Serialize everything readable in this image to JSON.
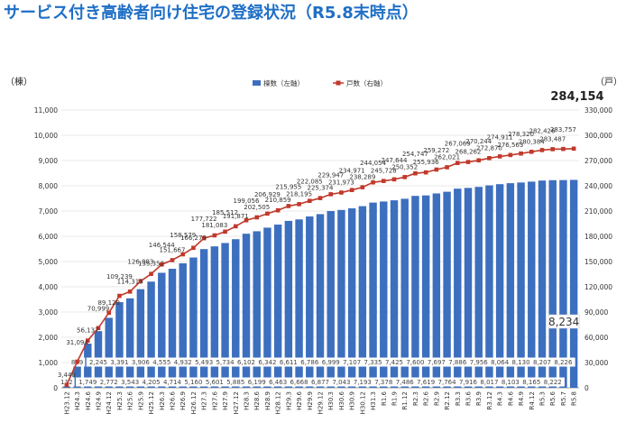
{
  "title": "サービス付き高齢者向け住宅の登録状況（R5.8末時点）",
  "chart_data": {
    "type": "bar+line",
    "left_axis_unit": "（棟）",
    "right_axis_unit": "（戸）",
    "left_ticks": [
      "11,000",
      "10,000",
      "9,000",
      "8,000",
      "7,000",
      "6,000",
      "5,000",
      "4,000",
      "3,000",
      "2,000",
      "1,000",
      "0"
    ],
    "right_ticks": [
      "330,000",
      "300,000",
      "270,000",
      "240,000",
      "210,000",
      "180,000",
      "150,000",
      "120,000",
      "90,000",
      "60,000",
      "30,000",
      "0"
    ],
    "ylim_left": [
      0,
      11000
    ],
    "ylim_right": [
      0,
      330000
    ],
    "legend": {
      "bar": "棟数（左軸）",
      "line": "戸数（右軸）",
      "placement": "top-center"
    },
    "bar_color": "#3d6fbf",
    "line_color": "#c0392b",
    "categories": [
      "H23.12",
      "H24.3",
      "H24.6",
      "H24.9",
      "H24.12",
      "H25.3",
      "H25.6",
      "H25.9",
      "H25.12",
      "H26.3",
      "H26.6",
      "H26.9",
      "H26.12",
      "H27.3",
      "H27.6",
      "H27.9",
      "H27.12",
      "H28.3",
      "H28.6",
      "H28.9",
      "H28.12",
      "H29.3",
      "H29.6",
      "H29.9",
      "H29.12",
      "H30.3",
      "H30.6",
      "H30.9",
      "H30.12",
      "H31.3",
      "R1.6",
      "R1.9",
      "R1.12",
      "R2.3",
      "R2.6",
      "R2.9",
      "R2.12",
      "R3.3",
      "R3.6",
      "R3.9",
      "R3.12",
      "R4.3",
      "R4.6",
      "R4.9",
      "R4.12",
      "R5.3",
      "R5.6",
      "R5.7",
      "R5.8"
    ],
    "series": [
      {
        "name": "棟数（左軸）",
        "values": [
          112,
          889,
          1749,
          2245,
          2772,
          3391,
          3543,
          3906,
          4205,
          4555,
          4714,
          4932,
          5160,
          5493,
          5601,
          5734,
          5885,
          6102,
          6199,
          6342,
          6463,
          6611,
          6668,
          6786,
          6877,
          6999,
          7043,
          7107,
          7193,
          7335,
          7378,
          7425,
          7486,
          7600,
          7619,
          7697,
          7764,
          7886,
          7916,
          7956,
          8017,
          8064,
          8103,
          8130,
          8165,
          8207,
          8222,
          8226,
          8234
        ],
        "labels": [
          "112",
          "889",
          "1,749",
          "2,245",
          "2,772",
          "3,391",
          "3,543",
          "3,906",
          "4,205",
          "4,555",
          "4,714",
          "4,932",
          "5,160",
          "5,493",
          "5,601",
          "5,734",
          "5,885",
          "6,102",
          "6,199",
          "6,342",
          "6,463",
          "6,611",
          "6,668",
          "6,786",
          "6,877",
          "6,999",
          "7,043",
          "7,107",
          "7,193",
          "7,335",
          "7,378",
          "7,425",
          "7,486",
          "7,600",
          "7,619",
          "7,697",
          "7,764",
          "7,886",
          "7,916",
          "7,956",
          "8,017",
          "8,064",
          "8,103",
          "8,130",
          "8,165",
          "8,207",
          "8,222",
          "8,226",
          "8,234"
        ]
      },
      {
        "name": "戸数（右軸）",
        "values": [
          3448,
          31094,
          56137,
          70999,
          89128,
          109239,
          114315,
          126803,
          135352,
          146544,
          151667,
          158579,
          166279,
          177722,
          181083,
          185512,
          191871,
          199056,
          202505,
          206929,
          210859,
          215955,
          218195,
          222085,
          225374,
          229947,
          231973,
          234971,
          238289,
          244054,
          245728,
          247644,
          250352,
          254747,
          255936,
          259272,
          262021,
          267069,
          268262,
          270244,
          272870,
          274911,
          276563,
          278320,
          280384,
          282426,
          283487,
          283757,
          284154
        ],
        "labels": [
          "3,448",
          "31,094",
          "56,137",
          "70,999",
          "89,128",
          "109,239",
          "114,315",
          "126,803",
          "135,352",
          "146,544",
          "151,667",
          "158,579",
          "166,279",
          "177,722",
          "181,083",
          "185,512",
          "191,871",
          "199,056",
          "202,505",
          "206,929",
          "210,859",
          "215,955",
          "218,195",
          "222,085",
          "225,374",
          "229,947",
          "231,973",
          "234,971",
          "238,289",
          "244,054",
          "245,728",
          "247,644",
          "250,352",
          "254,747",
          "255,936",
          "259,272",
          "262,021",
          "267,069",
          "268,262",
          "270,244",
          "272,870",
          "274,911",
          "276,563",
          "278,320",
          "280,384",
          "282,426",
          "283,487",
          "283,757",
          "284,154"
        ]
      }
    ],
    "highlight": {
      "bar": "8,234",
      "line": "284,154"
    }
  }
}
